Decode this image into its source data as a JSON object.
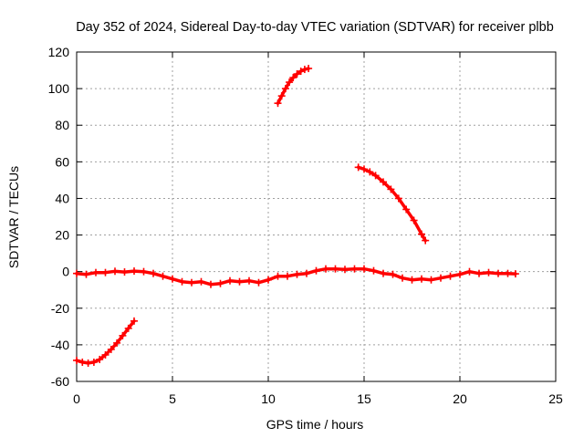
{
  "chart_data": {
    "type": "scatter",
    "title": "Day 352 of 2024, Sidereal Day-to-day VTEC variation (SDTVAR) for receiver plbb",
    "xlabel": "GPS time / hours",
    "ylabel": "SDTVAR / TECUs",
    "xlim": [
      0,
      25
    ],
    "ylim": [
      -60,
      120
    ],
    "xticks": [
      0,
      5,
      10,
      15,
      20,
      25
    ],
    "yticks": [
      -60,
      -40,
      -20,
      0,
      20,
      40,
      60,
      80,
      100,
      120
    ],
    "grid": true,
    "color": "#ff0000",
    "marker": "plus",
    "series": [
      {
        "name": "main",
        "points": [
          [
            0.0,
            -1.0
          ],
          [
            0.5,
            -1.5
          ],
          [
            1.0,
            -0.5
          ],
          [
            1.5,
            -0.5
          ],
          [
            2.0,
            0.2
          ],
          [
            2.5,
            -0.2
          ],
          [
            3.0,
            0.3
          ],
          [
            3.5,
            0.0
          ],
          [
            4.0,
            -1.0
          ],
          [
            4.5,
            -2.5
          ],
          [
            5.0,
            -4.0
          ],
          [
            5.5,
            -5.5
          ],
          [
            6.0,
            -6.0
          ],
          [
            6.5,
            -5.5
          ],
          [
            7.0,
            -7.0
          ],
          [
            7.5,
            -6.5
          ],
          [
            8.0,
            -5.0
          ],
          [
            8.5,
            -5.5
          ],
          [
            9.0,
            -5.0
          ],
          [
            9.5,
            -6.0
          ],
          [
            10.0,
            -4.5
          ],
          [
            10.5,
            -2.5
          ],
          [
            11.0,
            -2.5
          ],
          [
            11.5,
            -1.5
          ],
          [
            12.0,
            -1.0
          ],
          [
            12.5,
            0.5
          ],
          [
            13.0,
            1.5
          ],
          [
            13.5,
            1.5
          ],
          [
            14.0,
            1.2
          ],
          [
            14.5,
            1.5
          ],
          [
            15.0,
            1.5
          ],
          [
            15.5,
            0.5
          ],
          [
            16.0,
            -1.0
          ],
          [
            16.5,
            -1.5
          ],
          [
            17.0,
            -3.5
          ],
          [
            17.5,
            -4.5
          ],
          [
            18.0,
            -4.0
          ],
          [
            18.5,
            -4.5
          ],
          [
            19.0,
            -3.5
          ],
          [
            19.5,
            -2.5
          ],
          [
            20.0,
            -1.5
          ],
          [
            20.5,
            0.0
          ],
          [
            21.0,
            -1.0
          ],
          [
            21.5,
            -0.5
          ],
          [
            22.0,
            -1.0
          ],
          [
            22.5,
            -1.0
          ],
          [
            22.9,
            -1.2
          ]
        ]
      },
      {
        "name": "arc-start",
        "points": [
          [
            0.0,
            -48.5
          ],
          [
            0.3,
            -49.5
          ],
          [
            0.6,
            -50.0
          ],
          [
            0.9,
            -49.5
          ],
          [
            1.2,
            -48.0
          ],
          [
            1.5,
            -45.5
          ],
          [
            1.8,
            -42.5
          ],
          [
            2.1,
            -39.0
          ],
          [
            2.4,
            -35.0
          ],
          [
            2.7,
            -31.0
          ],
          [
            3.0,
            -27.0
          ]
        ]
      },
      {
        "name": "arc-peak",
        "points": [
          [
            10.5,
            92.0
          ],
          [
            10.7,
            96.0
          ],
          [
            10.9,
            100.0
          ],
          [
            11.1,
            103.5
          ],
          [
            11.3,
            106.0
          ],
          [
            11.5,
            108.0
          ],
          [
            11.7,
            109.5
          ],
          [
            11.9,
            110.5
          ],
          [
            12.1,
            111.0
          ]
        ]
      },
      {
        "name": "descending",
        "points": [
          [
            14.7,
            57.0
          ],
          [
            15.0,
            56.0
          ],
          [
            15.3,
            54.5
          ],
          [
            15.6,
            52.5
          ],
          [
            16.0,
            49.0
          ],
          [
            16.4,
            45.0
          ],
          [
            16.8,
            40.0
          ],
          [
            17.2,
            34.0
          ],
          [
            17.6,
            28.0
          ],
          [
            18.0,
            20.5
          ],
          [
            18.2,
            17.0
          ]
        ]
      }
    ]
  }
}
